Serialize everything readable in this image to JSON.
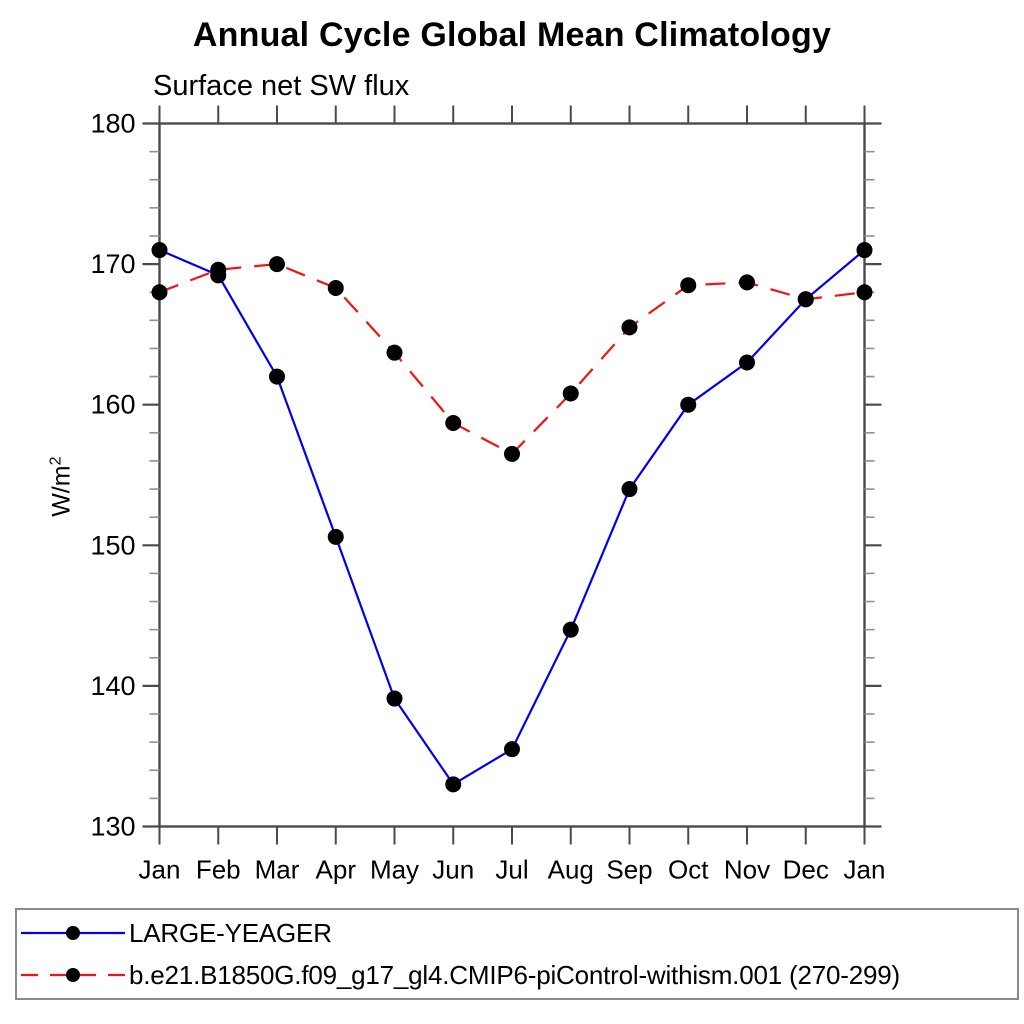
{
  "chart": {
    "title": "Annual Cycle Global Mean Climatology",
    "subtitle": "Surface net SW flux",
    "ylabel": "W/m²"
  },
  "colors": {
    "series1_blue": "#0000f0",
    "series2_red": "#f21414",
    "marker_black": "#000000",
    "axis": "#4a4a4a",
    "minor_tick": "#909090",
    "text": "#000000",
    "legend_border": "#8a8a8a"
  },
  "chart_data": {
    "type": "line",
    "title": "Annual Cycle Global Mean Climatology",
    "subtitle": "Surface net SW flux",
    "xlabel": "",
    "ylabel": "W/m²",
    "x_tick_labels": [
      "Jan",
      "Feb",
      "Mar",
      "Apr",
      "May",
      "Jun",
      "Jul",
      "Aug",
      "Sep",
      "Oct",
      "Nov",
      "Dec",
      "Jan"
    ],
    "ylim": [
      130,
      180
    ],
    "y_major_ticks": [
      130,
      140,
      150,
      160,
      170,
      180
    ],
    "y_minor_step": 2,
    "grid": false,
    "legend_position": "bottom-left-box",
    "series": [
      {
        "name": "LARGE-YEAGER",
        "color": "#0000f0",
        "line_style": "solid",
        "marker": "filled-circle",
        "values": [
          171.0,
          169.2,
          162.0,
          150.6,
          139.1,
          133.0,
          135.5,
          144.0,
          154.0,
          160.0,
          163.0,
          167.5,
          171.0
        ]
      },
      {
        "name": "b.e21.B1850G.f09_g17_gl4.CMIP6-piControl-withism.001 (270-299)",
        "color": "#f21414",
        "line_style": "dashed",
        "marker": "filled-circle",
        "values": [
          168.0,
          169.6,
          170.0,
          168.3,
          163.7,
          158.7,
          156.5,
          160.8,
          165.5,
          168.5,
          168.7,
          167.5,
          168.0
        ]
      }
    ]
  }
}
